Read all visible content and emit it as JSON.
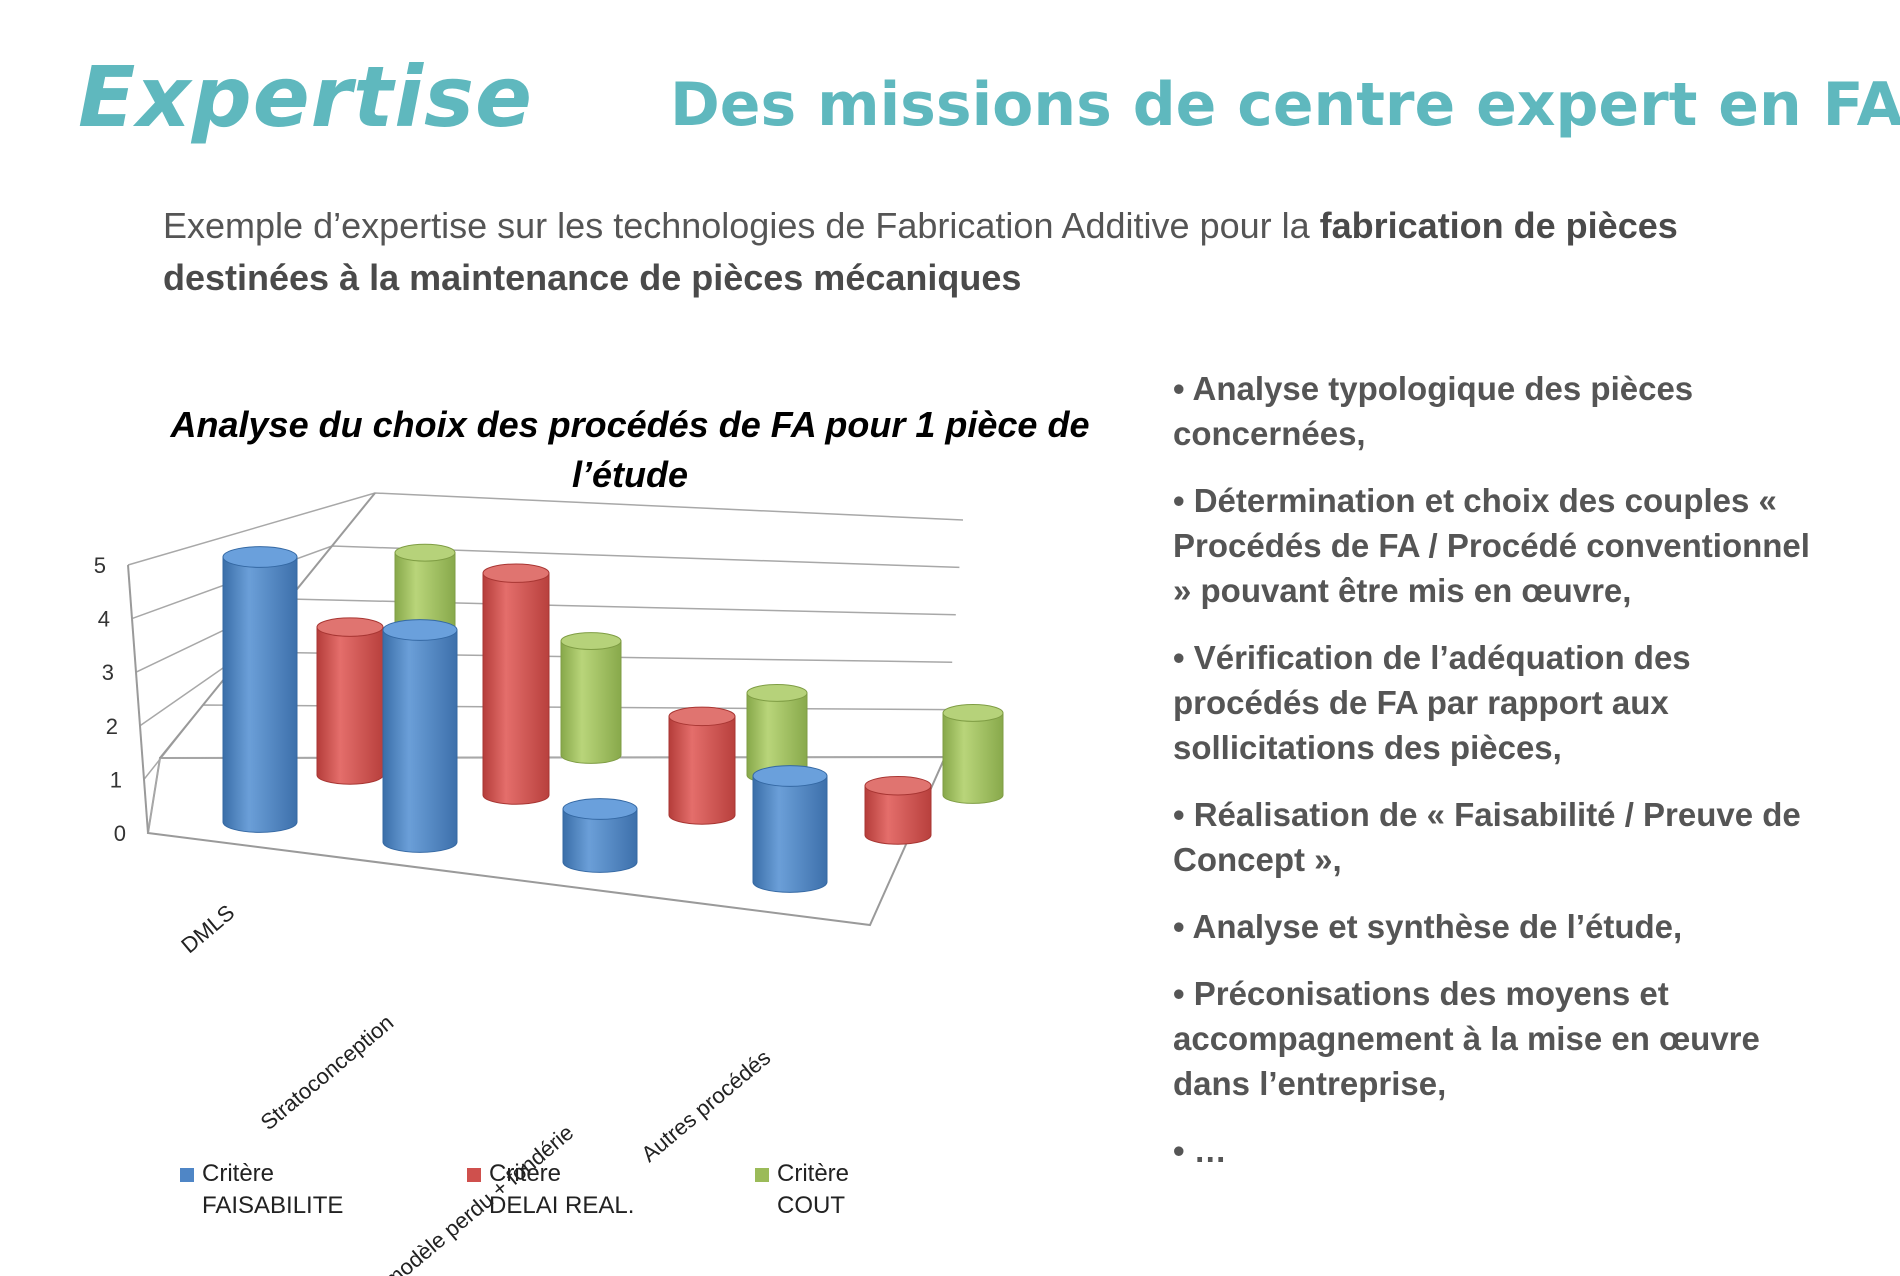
{
  "header": {
    "brand": "Expertise",
    "headline": "Des missions de centre expert en FA"
  },
  "intro": {
    "text": "Exemple d’expertise sur les technologies de Fabrication Additive pour la ",
    "bold": "fabrication de pièces destinées à la maintenance de pièces mécaniques"
  },
  "chart_data": {
    "type": "bar",
    "title": "Analyse du choix des procédés de FA pour 1 pièce de l’étude",
    "categories": [
      "DMLS",
      "Stratoconception",
      "SLS modèle perdu + fondérie",
      "Autres procédés"
    ],
    "series": [
      {
        "name": "Critère FAISABILITE",
        "values": [
          5,
          4,
          1,
          2
        ]
      },
      {
        "name": "Critère DELAI REAL.",
        "values": [
          3,
          4.5,
          2,
          1
        ]
      },
      {
        "name": "Critère COUT",
        "values": [
          4,
          2.5,
          1.8,
          1.8
        ]
      }
    ],
    "ylim": [
      0,
      5
    ],
    "yticks": [
      "0",
      "1",
      "2",
      "3",
      "4",
      "5"
    ],
    "grid": true,
    "legend": "bottom",
    "colors": [
      "#4f86c6",
      "#cf504d",
      "#9bbb59"
    ]
  },
  "legend": [
    {
      "line1": "Critère",
      "line2": "FAISABILITE"
    },
    {
      "line1": "Critère",
      "line2": "DELAI REAL."
    },
    {
      "line1": "Critère",
      "line2": "COUT"
    }
  ],
  "bullets": [
    "• Analyse  typologique des pièces concernées,",
    "• Détermination et choix des couples « Procédés de FA / Procédé conventionnel » pouvant être mis en œuvre,",
    "• Vérification de l’adéquation des procédés de FA par rapport aux sollicitations des pièces,",
    "• Réalisation de « Faisabilité / Preuve de Concept »,",
    "• Analyse et synthèse de l’étude,",
    "• Préconisations des moyens et accompagnement à la mise en œuvre dans l’entreprise,",
    "• …"
  ],
  "colors": {
    "accent": "#5fb8be",
    "text": "#555555"
  }
}
